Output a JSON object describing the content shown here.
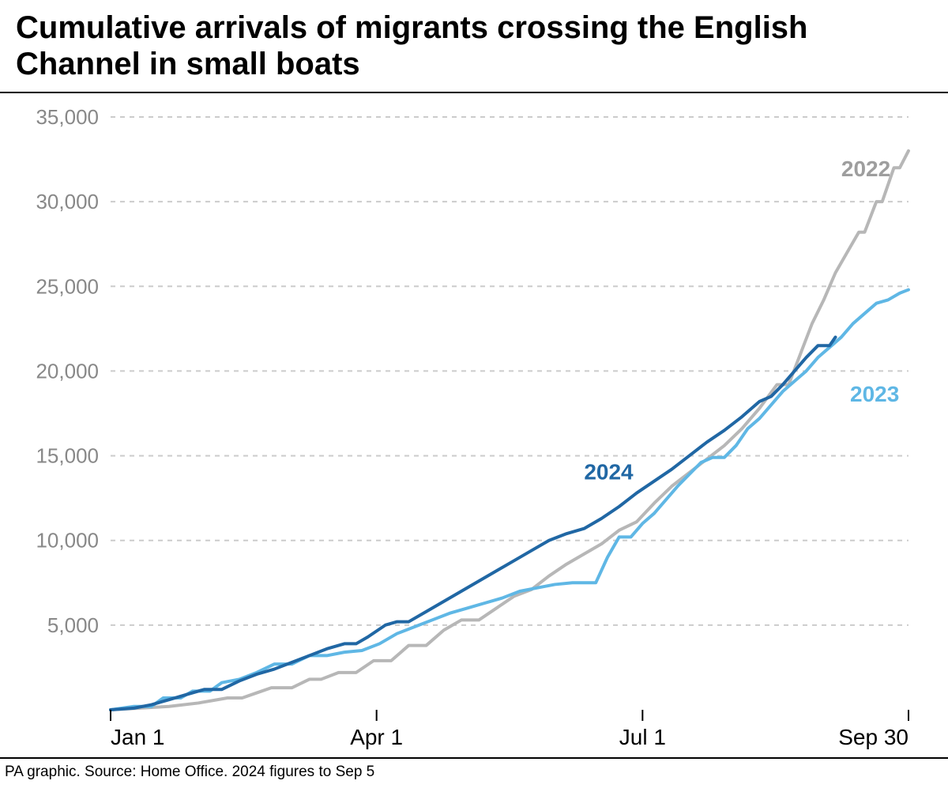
{
  "title": "Cumulative arrivals of migrants crossing the English Channel in small boats",
  "footer": "PA graphic. Source: Home Office. 2024 figures to Sep 5",
  "chart": {
    "type": "line",
    "background_color": "#ffffff",
    "grid_color": "#cccccc",
    "axis_color": "#000000",
    "y": {
      "min": 0,
      "max": 35000,
      "ticks": [
        5000,
        10000,
        15000,
        20000,
        25000,
        30000,
        35000
      ],
      "tick_labels": [
        "5,000",
        "10,000",
        "15,000",
        "20,000",
        "25,000",
        "30,000",
        "35,000"
      ],
      "label_color": "#888888",
      "label_fontsize": 26
    },
    "x": {
      "min": 0,
      "max": 273,
      "ticks": [
        0,
        91,
        182,
        273
      ],
      "tick_labels": [
        "Jan 1",
        "Apr 1",
        "Jul 1",
        "Sep 30"
      ],
      "label_color": "#000000",
      "label_fontsize": 28
    },
    "line_width": 4,
    "series": [
      {
        "name": "2022",
        "label": "2022",
        "color": "#b7b7b7",
        "label_color": "#9e9e9e",
        "label_pos": {
          "x": 250,
          "y": 31500
        },
        "data": [
          [
            0,
            0
          ],
          [
            10,
            100
          ],
          [
            20,
            200
          ],
          [
            30,
            400
          ],
          [
            40,
            700
          ],
          [
            45,
            700
          ],
          [
            50,
            1000
          ],
          [
            55,
            1300
          ],
          [
            62,
            1300
          ],
          [
            68,
            1800
          ],
          [
            72,
            1800
          ],
          [
            78,
            2200
          ],
          [
            84,
            2200
          ],
          [
            90,
            2900
          ],
          [
            96,
            2900
          ],
          [
            102,
            3800
          ],
          [
            108,
            3800
          ],
          [
            114,
            4700
          ],
          [
            120,
            5300
          ],
          [
            126,
            5300
          ],
          [
            132,
            6000
          ],
          [
            138,
            6700
          ],
          [
            144,
            7100
          ],
          [
            150,
            7900
          ],
          [
            156,
            8600
          ],
          [
            162,
            9200
          ],
          [
            168,
            9800
          ],
          [
            174,
            10600
          ],
          [
            180,
            11100
          ],
          [
            186,
            12200
          ],
          [
            192,
            13200
          ],
          [
            198,
            14000
          ],
          [
            204,
            14800
          ],
          [
            210,
            15600
          ],
          [
            216,
            16600
          ],
          [
            222,
            17800
          ],
          [
            228,
            19200
          ],
          [
            232,
            19200
          ],
          [
            236,
            21000
          ],
          [
            240,
            22800
          ],
          [
            244,
            24200
          ],
          [
            248,
            25800
          ],
          [
            252,
            27000
          ],
          [
            256,
            28200
          ],
          [
            258,
            28200
          ],
          [
            262,
            30000
          ],
          [
            264,
            30000
          ],
          [
            268,
            32000
          ],
          [
            270,
            32000
          ],
          [
            273,
            33000
          ]
        ]
      },
      {
        "name": "2023",
        "label": "2023",
        "color": "#5fb7e5",
        "label_color": "#5fb7e5",
        "label_pos": {
          "x": 253,
          "y": 18200
        },
        "data": [
          [
            0,
            0
          ],
          [
            8,
            200
          ],
          [
            14,
            200
          ],
          [
            18,
            700
          ],
          [
            24,
            700
          ],
          [
            28,
            1100
          ],
          [
            34,
            1100
          ],
          [
            38,
            1600
          ],
          [
            44,
            1800
          ],
          [
            50,
            2200
          ],
          [
            56,
            2700
          ],
          [
            62,
            2700
          ],
          [
            68,
            3200
          ],
          [
            74,
            3200
          ],
          [
            80,
            3400
          ],
          [
            86,
            3500
          ],
          [
            92,
            3900
          ],
          [
            98,
            4500
          ],
          [
            104,
            4900
          ],
          [
            110,
            5300
          ],
          [
            116,
            5700
          ],
          [
            122,
            6000
          ],
          [
            128,
            6300
          ],
          [
            134,
            6600
          ],
          [
            140,
            7000
          ],
          [
            146,
            7200
          ],
          [
            152,
            7400
          ],
          [
            158,
            7500
          ],
          [
            162,
            7500
          ],
          [
            166,
            7500
          ],
          [
            170,
            9000
          ],
          [
            174,
            10200
          ],
          [
            178,
            10200
          ],
          [
            182,
            11000
          ],
          [
            186,
            11600
          ],
          [
            190,
            12400
          ],
          [
            194,
            13200
          ],
          [
            198,
            13900
          ],
          [
            202,
            14600
          ],
          [
            206,
            14900
          ],
          [
            210,
            14900
          ],
          [
            214,
            15600
          ],
          [
            218,
            16600
          ],
          [
            222,
            17200
          ],
          [
            226,
            18000
          ],
          [
            230,
            18800
          ],
          [
            234,
            19400
          ],
          [
            238,
            20000
          ],
          [
            242,
            20800
          ],
          [
            246,
            21400
          ],
          [
            250,
            22000
          ],
          [
            254,
            22800
          ],
          [
            258,
            23400
          ],
          [
            262,
            24000
          ],
          [
            266,
            24200
          ],
          [
            270,
            24600
          ],
          [
            273,
            24800
          ]
        ]
      },
      {
        "name": "2024",
        "label": "2024",
        "color": "#2067a4",
        "label_color": "#2067a4",
        "label_pos": {
          "x": 162,
          "y": 13600
        },
        "data": [
          [
            0,
            0
          ],
          [
            8,
            100
          ],
          [
            14,
            300
          ],
          [
            20,
            600
          ],
          [
            26,
            900
          ],
          [
            32,
            1200
          ],
          [
            38,
            1200
          ],
          [
            44,
            1700
          ],
          [
            50,
            2100
          ],
          [
            56,
            2400
          ],
          [
            62,
            2800
          ],
          [
            68,
            3200
          ],
          [
            74,
            3600
          ],
          [
            80,
            3900
          ],
          [
            84,
            3900
          ],
          [
            88,
            4300
          ],
          [
            94,
            5000
          ],
          [
            98,
            5200
          ],
          [
            102,
            5200
          ],
          [
            108,
            5800
          ],
          [
            114,
            6400
          ],
          [
            120,
            7000
          ],
          [
            126,
            7600
          ],
          [
            132,
            8200
          ],
          [
            138,
            8800
          ],
          [
            144,
            9400
          ],
          [
            150,
            10000
          ],
          [
            156,
            10400
          ],
          [
            162,
            10700
          ],
          [
            168,
            11300
          ],
          [
            174,
            12000
          ],
          [
            180,
            12800
          ],
          [
            186,
            13500
          ],
          [
            192,
            14200
          ],
          [
            198,
            15000
          ],
          [
            204,
            15800
          ],
          [
            210,
            16500
          ],
          [
            216,
            17300
          ],
          [
            222,
            18200
          ],
          [
            226,
            18500
          ],
          [
            230,
            19200
          ],
          [
            234,
            20000
          ],
          [
            238,
            20800
          ],
          [
            242,
            21500
          ],
          [
            246,
            21500
          ],
          [
            248,
            22000
          ]
        ]
      }
    ]
  }
}
